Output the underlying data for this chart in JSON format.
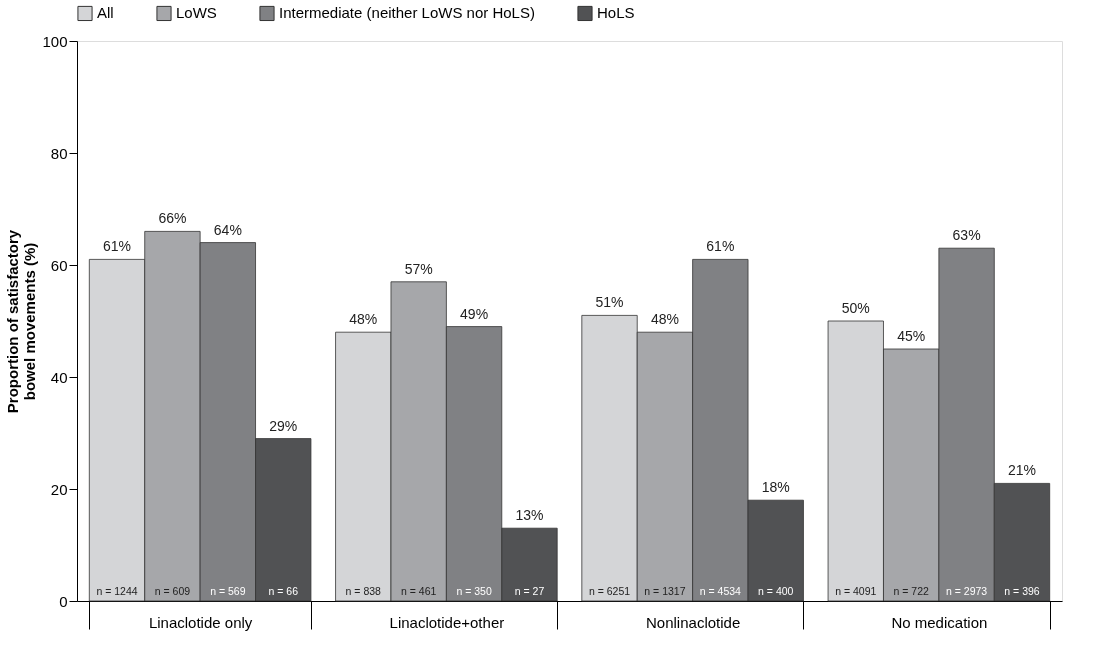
{
  "chart_data": {
    "type": "bar",
    "ylabel": "Proportion of satisfactory\nbowel movements (%)",
    "categories": [
      "Linaclotide only",
      "Linaclotide+other",
      "Nonlinaclotide",
      "No medication"
    ],
    "series": [
      {
        "name": "All",
        "color": "#d4d5d7",
        "values": [
          61,
          48,
          51,
          50
        ],
        "value_labels": [
          "61%",
          "48%",
          "51%",
          "50%"
        ]
      },
      {
        "name": "LoWS",
        "color": "#a6a7aa",
        "values": [
          66,
          57,
          48,
          45
        ],
        "value_labels": [
          "66%",
          "57%",
          "48%",
          "45%"
        ]
      },
      {
        "name": "Intermediate (neither LoWS nor HoLS)",
        "color": "#808184",
        "values": [
          64,
          49,
          61,
          63
        ],
        "value_labels": [
          "64%",
          "49%",
          "61%",
          "63%"
        ]
      },
      {
        "name": "HoLS",
        "color": "#515254",
        "values": [
          29,
          13,
          18,
          21
        ],
        "value_labels": [
          "29%",
          "13%",
          "18%",
          "21%"
        ]
      }
    ],
    "ylim": [
      0,
      100
    ],
    "yticks": [
      0,
      20,
      40,
      60,
      80,
      100
    ],
    "grid": false,
    "legend": "top",
    "annotations": [
      "n = 1244",
      "n = 609",
      "n = 569",
      "n = 66",
      "n = 838",
      "n = 461",
      "n = 350",
      "n = 27",
      "n = 6251",
      "n = 1317",
      "n = 4534",
      "n = 400",
      "n = 4091",
      "n = 722",
      "n = 2973",
      "n = 396"
    ]
  }
}
